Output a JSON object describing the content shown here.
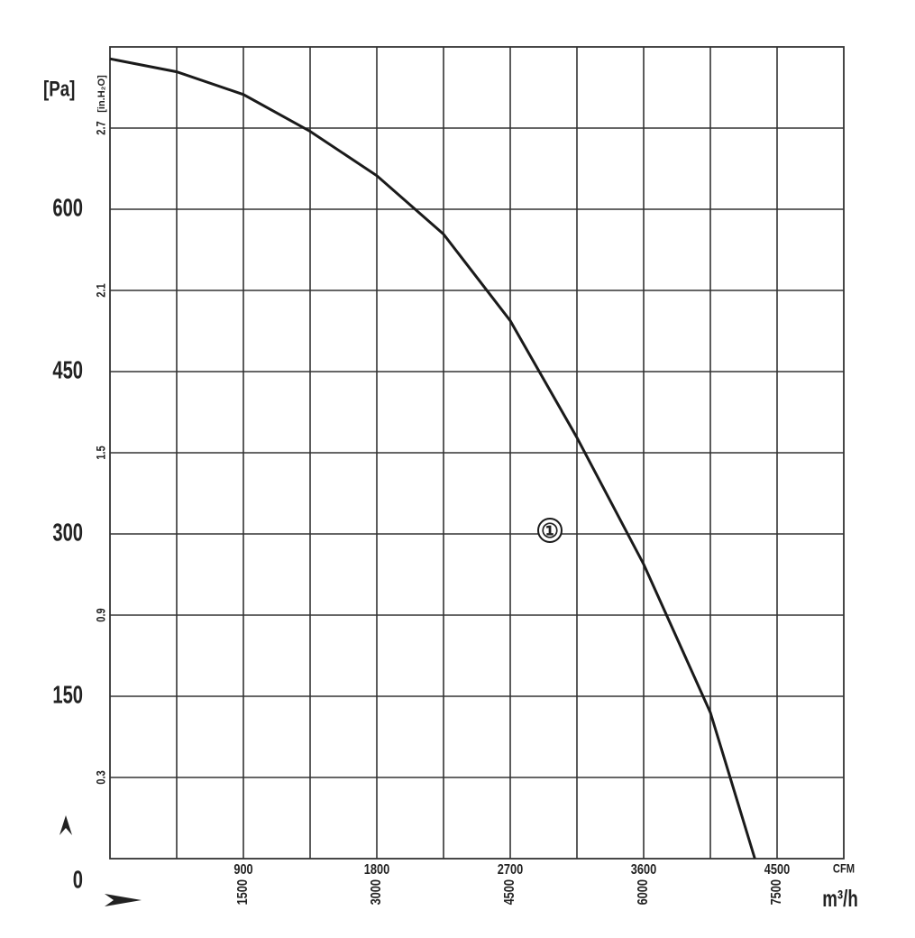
{
  "chart_data": {
    "type": "line",
    "y_unit": "[Pa]",
    "y2_unit": "[in.H₂O]",
    "x_unit": "m³/h",
    "x2_unit": "CFM",
    "x": [
      0,
      750,
      1500,
      2250,
      3000,
      3750,
      4500,
      5250,
      6000,
      6750,
      7250
    ],
    "series": [
      {
        "name": "①",
        "color": "#1a1a1a",
        "values": [
          739,
          727,
          706,
          672,
          631,
          577,
          497,
          389,
          272,
          135,
          0
        ]
      }
    ],
    "xlim": [
      0,
      8250
    ],
    "xticks": [
      1500,
      3000,
      4500,
      6000,
      7500
    ],
    "x_minor_grid": [
      750,
      2250,
      3750,
      5250,
      6750
    ],
    "x2lim": [
      0,
      4950
    ],
    "x2ticks": [
      900,
      1800,
      2700,
      3600,
      4500
    ],
    "ylim": [
      0,
      750
    ],
    "yticks": [
      0,
      150,
      300,
      450,
      600
    ],
    "y2lim": [
      0,
      3.0
    ],
    "y2ticks": [
      0.3,
      0.9,
      1.5,
      2.1,
      2.7
    ],
    "grid": true
  }
}
